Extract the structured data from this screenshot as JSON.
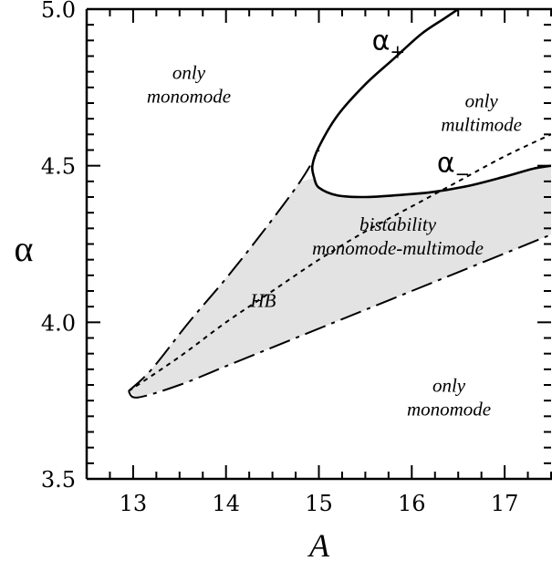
{
  "chart_data": {
    "type": "line",
    "xlabel": "A",
    "ylabel": "α",
    "xlim": [
      12.5,
      17.5
    ],
    "ylim": [
      3.5,
      5.0
    ],
    "xticks": [
      "13",
      "14",
      "15",
      "16",
      "17"
    ],
    "yticks": [
      "3.5",
      "4.0",
      "4.5",
      "5.0"
    ],
    "grid": false,
    "series": [
      {
        "name": "α+",
        "style": "solid",
        "x": [
          14.95,
          14.93,
          15.0,
          15.2,
          15.5,
          15.8,
          16.1,
          16.35,
          16.5
        ],
        "y": [
          4.46,
          4.5,
          4.56,
          4.66,
          4.76,
          4.84,
          4.92,
          4.97,
          5.0
        ]
      },
      {
        "name": "α−",
        "style": "solid",
        "x": [
          14.95,
          15.0,
          15.2,
          15.5,
          15.8,
          16.2,
          16.6,
          17.0,
          17.3,
          17.5
        ],
        "y": [
          4.46,
          4.43,
          4.405,
          4.4,
          4.405,
          4.415,
          4.435,
          4.465,
          4.49,
          4.5
        ]
      },
      {
        "name": "HB",
        "style": "dotted",
        "x": [
          12.95,
          13.5,
          14.0,
          14.5,
          15.0,
          15.5,
          16.0,
          16.5,
          17.0,
          17.5
        ],
        "y": [
          3.78,
          3.89,
          4.0,
          4.1,
          4.2,
          4.29,
          4.37,
          4.45,
          4.53,
          4.6
        ]
      },
      {
        "name": "bistability-upper-boundary",
        "style": "dashdot",
        "x": [
          12.95,
          13.2,
          13.6,
          14.0,
          14.4,
          14.8,
          15.0
        ],
        "y": [
          3.78,
          3.85,
          4.0,
          4.14,
          4.29,
          4.45,
          4.55
        ]
      },
      {
        "name": "bistability-lower-boundary",
        "style": "dashdot",
        "x": [
          12.95,
          13.05,
          13.5,
          14.0,
          14.5,
          15.0,
          15.5,
          16.0,
          16.5,
          17.0,
          17.5
        ],
        "y": [
          3.78,
          3.76,
          3.8,
          3.86,
          3.92,
          3.98,
          4.04,
          4.1,
          4.16,
          4.22,
          4.28
        ]
      }
    ],
    "shaded_region": {
      "name": "bistability monomode-multimode",
      "color": "#e3e3e3",
      "boundary_x": [
        12.95,
        13.2,
        13.6,
        14.0,
        14.4,
        14.8,
        14.95,
        15.0,
        15.2,
        15.5,
        15.8,
        16.2,
        16.6,
        17.0,
        17.3,
        17.5,
        17.5,
        17.0,
        16.5,
        16.0,
        15.5,
        15.0,
        14.5,
        14.0,
        13.5,
        13.05
      ],
      "boundary_y": [
        3.78,
        3.85,
        4.0,
        4.14,
        4.29,
        4.45,
        4.46,
        4.43,
        4.405,
        4.4,
        4.405,
        4.415,
        4.435,
        4.465,
        4.49,
        4.5,
        4.28,
        4.22,
        4.16,
        4.1,
        4.04,
        3.98,
        3.92,
        3.86,
        3.8,
        3.76
      ]
    },
    "curve_labels": [
      {
        "text": "α",
        "sub": "+",
        "x": 15.75,
        "y": 4.87
      },
      {
        "text": "α",
        "sub": "−",
        "x": 16.45,
        "y": 4.48
      }
    ],
    "annotations": [
      {
        "lines": [
          "only",
          "monomode"
        ],
        "x": 13.6,
        "y": 4.76
      },
      {
        "lines": [
          "only",
          "multimode"
        ],
        "x": 16.75,
        "y": 4.67
      },
      {
        "lines": [
          "bistability",
          "monomode-multimode"
        ],
        "x": 15.85,
        "y": 4.275
      },
      {
        "lines": [
          "HB"
        ],
        "x": 14.4,
        "y": 4.07
      },
      {
        "lines": [
          "only",
          "monomode"
        ],
        "x": 16.4,
        "y": 3.76
      }
    ]
  }
}
